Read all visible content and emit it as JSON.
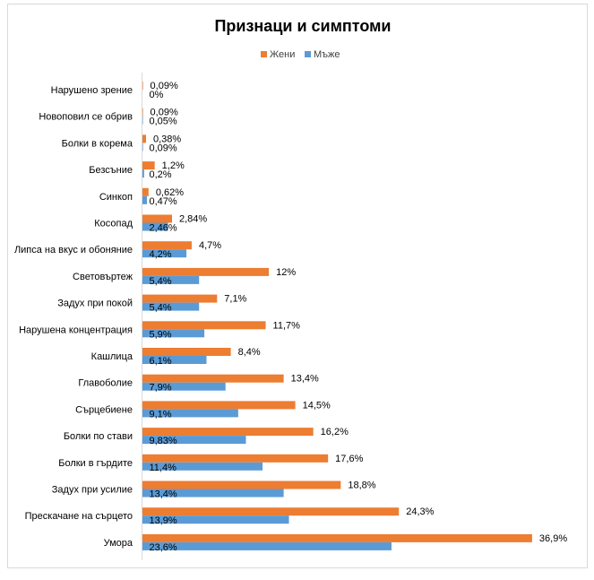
{
  "chart_data": {
    "type": "bar",
    "orientation": "horizontal",
    "title": "Признаци и симптоми",
    "legend_position": "top",
    "series": [
      {
        "name": "Жени",
        "color": "#ED7D31",
        "values": [
          0.09,
          0.09,
          0.38,
          1.2,
          0.62,
          2.84,
          4.7,
          12,
          7.1,
          11.7,
          8.4,
          13.4,
          14.5,
          16.2,
          17.6,
          18.8,
          24.3,
          36.9
        ],
        "labels": [
          "0,09%",
          "0,09%",
          "0,38%",
          "1,2%",
          "0,62%",
          "2,84%",
          "4,7%",
          "12%",
          "7,1%",
          "11,7%",
          "8,4%",
          "13,4%",
          "14,5%",
          "16,2%",
          "17,6%",
          "18,8%",
          "24,3%",
          "36,9%"
        ]
      },
      {
        "name": "Мъже",
        "color": "#5B9BD5",
        "values": [
          0,
          0.05,
          0.09,
          0.2,
          0.47,
          2.46,
          4.2,
          5.4,
          5.4,
          5.9,
          6.1,
          7.9,
          9.1,
          9.83,
          11.4,
          13.4,
          13.9,
          23.6
        ],
        "labels": [
          "0%",
          "0,05%",
          "0,09%",
          "0,2%",
          "0,47%",
          "2,46%",
          "4,2%",
          "5,4%",
          "5,4%",
          "5,9%",
          "6,1%",
          "7,9%",
          "9,1%",
          "9,83%",
          "11,4%",
          "13,4%",
          "13,9%",
          "23,6%"
        ]
      }
    ],
    "categories": [
      "Нарушено зрение",
      "Новоповил се обрив",
      "Болки в корема",
      "Безсъние",
      "Синкоп",
      "Косопад",
      "Липса на вкус и обоняние",
      "Световъртеж",
      "Задух при покой",
      "Нарушена концентрация",
      "Кашлица",
      "Главоболие",
      "Сърцебиене",
      "Болки по стави",
      "Болки в гърдите",
      "Задух при усилие",
      "Прескачане на сърцето",
      "Умора"
    ],
    "xlim": [
      0,
      40
    ],
    "grid": false
  }
}
